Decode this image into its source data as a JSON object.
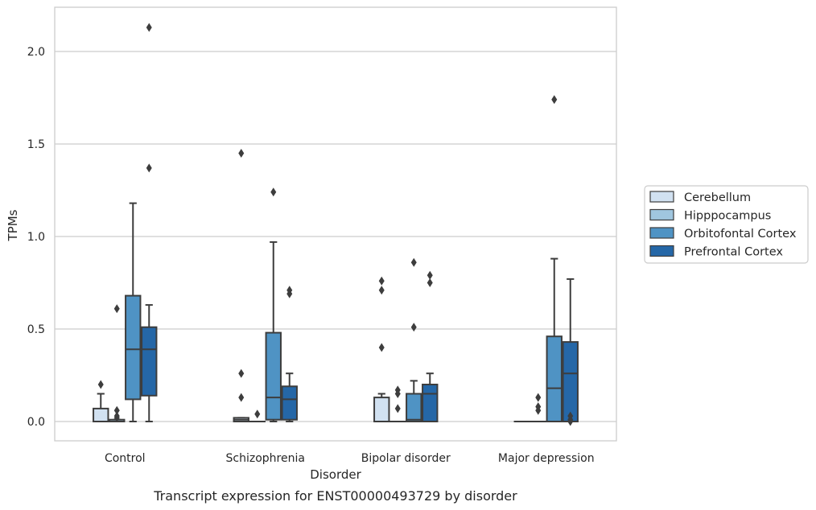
{
  "chart_data": {
    "type": "box",
    "title": "Transcript expression for ENST00000493729 by disorder",
    "xlabel": "Disorder",
    "ylabel": "TPMs",
    "ylim": [
      -0.1,
      2.25
    ],
    "yticks": [
      0.0,
      0.5,
      1.0,
      1.5,
      2.0
    ],
    "ytick_labels": [
      "0.0",
      "0.5",
      "1.0",
      "1.5",
      "2.0"
    ],
    "grid": "horizontal",
    "legend_position": "right",
    "categories": [
      "Control",
      "Schizophrenia",
      "Bipolar disorder",
      "Major depression"
    ],
    "series": [
      {
        "name": "Cerebellum",
        "color": "#d1e1f1",
        "boxes": [
          {
            "whislo": 0.0,
            "q1": 0.0,
            "med": 0.0,
            "q3": 0.07,
            "whishi": 0.15,
            "fliers": [
              0.2
            ]
          },
          {
            "whislo": 0.0,
            "q1": 0.0,
            "med": 0.01,
            "q3": 0.02,
            "whishi": 0.02,
            "fliers": [
              0.13,
              0.26,
              1.45
            ]
          },
          {
            "whislo": 0.0,
            "q1": 0.0,
            "med": 0.0,
            "q3": 0.13,
            "whishi": 0.15,
            "fliers": [
              0.4,
              0.71,
              0.76
            ]
          },
          {
            "whislo": 0.0,
            "q1": 0.0,
            "med": 0.0,
            "q3": 0.0,
            "whishi": 0.0,
            "fliers": []
          }
        ]
      },
      {
        "name": "Hipppocampus",
        "color": "#a0c6df",
        "boxes": [
          {
            "whislo": 0.0,
            "q1": 0.0,
            "med": 0.0,
            "q3": 0.01,
            "whishi": 0.01,
            "fliers": [
              0.02,
              0.03,
              0.06,
              0.61
            ]
          },
          {
            "whislo": 0.0,
            "q1": 0.0,
            "med": 0.0,
            "q3": 0.0,
            "whishi": 0.0,
            "fliers": [
              0.04
            ]
          },
          {
            "whislo": 0.0,
            "q1": 0.0,
            "med": 0.0,
            "q3": 0.0,
            "whishi": 0.0,
            "fliers": [
              0.07,
              0.15,
              0.17
            ]
          },
          {
            "whislo": 0.0,
            "q1": 0.0,
            "med": 0.0,
            "q3": 0.0,
            "whishi": 0.0,
            "fliers": [
              0.06,
              0.08,
              0.13
            ]
          }
        ]
      },
      {
        "name": "Orbitofontal Cortex",
        "color": "#4f93c4",
        "boxes": [
          {
            "whislo": 0.0,
            "q1": 0.12,
            "med": 0.39,
            "q3": 0.68,
            "whishi": 1.18,
            "fliers": []
          },
          {
            "whislo": 0.0,
            "q1": 0.01,
            "med": 0.13,
            "q3": 0.48,
            "whishi": 0.97,
            "fliers": [
              1.24
            ]
          },
          {
            "whislo": 0.0,
            "q1": 0.0,
            "med": 0.01,
            "q3": 0.15,
            "whishi": 0.22,
            "fliers": [
              0.51,
              0.86
            ]
          },
          {
            "whislo": 0.0,
            "q1": 0.0,
            "med": 0.18,
            "q3": 0.46,
            "whishi": 0.88,
            "fliers": [
              1.74
            ]
          }
        ]
      },
      {
        "name": "Prefrontal Cortex",
        "color": "#2567a7",
        "boxes": [
          {
            "whislo": 0.0,
            "q1": 0.14,
            "med": 0.39,
            "q3": 0.51,
            "whishi": 0.63,
            "fliers": [
              1.37,
              2.13
            ]
          },
          {
            "whislo": 0.0,
            "q1": 0.01,
            "med": 0.12,
            "q3": 0.19,
            "whishi": 0.26,
            "fliers": [
              0.69,
              0.71
            ]
          },
          {
            "whislo": 0.0,
            "q1": 0.0,
            "med": 0.15,
            "q3": 0.2,
            "whishi": 0.26,
            "fliers": [
              0.75,
              0.79
            ]
          },
          {
            "whislo": 0.0,
            "q1": 0.0,
            "med": 0.26,
            "q3": 0.43,
            "whishi": 0.77,
            "fliers": [
              0.0,
              0.01,
              0.03
            ]
          }
        ]
      }
    ]
  }
}
